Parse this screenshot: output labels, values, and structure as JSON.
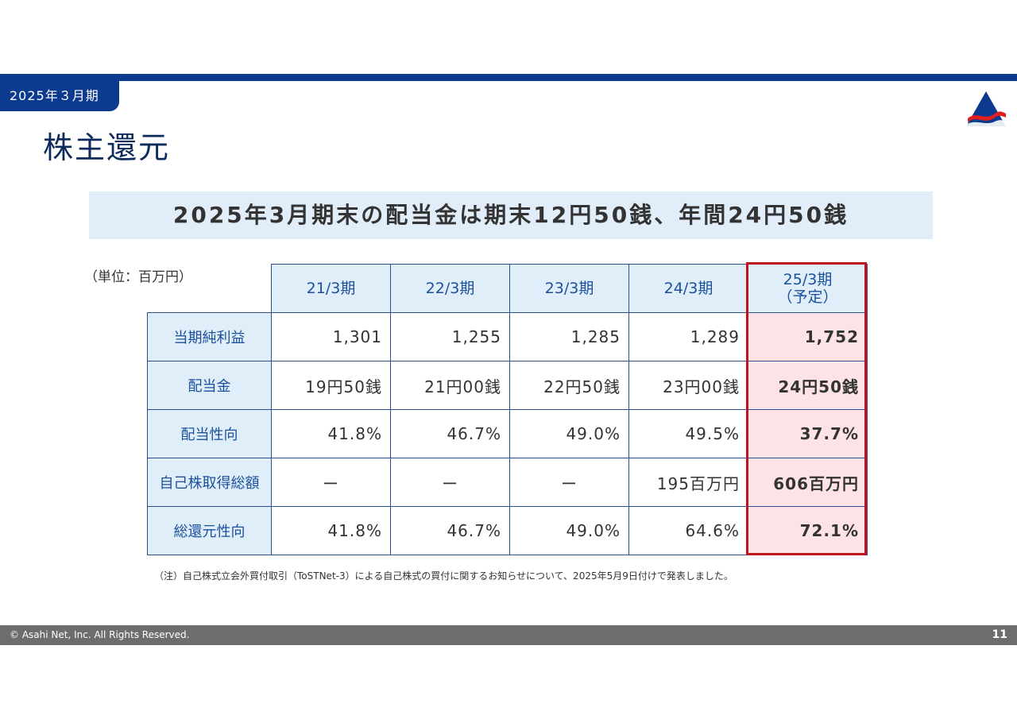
{
  "header": {
    "period_tab": "2025年３月期",
    "title": "株主還元"
  },
  "headline": "2025年3月期末の配当金は期末12円50銭、年間24円50銭",
  "unit_label": "（単位：百万円）",
  "table": {
    "columns": [
      "21/3期",
      "22/3期",
      "23/3期",
      "24/3期",
      "25/3期\n（予定）"
    ],
    "rows": [
      {
        "label": "当期純利益",
        "values": [
          "1,301",
          "1,255",
          "1,285",
          "1,289",
          "1,752"
        ]
      },
      {
        "label": "配当金",
        "values": [
          "19円50銭",
          "21円00銭",
          "22円50銭",
          "23円00銭",
          "24円50銭"
        ]
      },
      {
        "label": "配当性向",
        "values": [
          "41.8%",
          "46.7%",
          "49.0%",
          "49.5%",
          "37.7%"
        ]
      },
      {
        "label": "自己株取得総額",
        "values": [
          "ー",
          "ー",
          "ー",
          "195百万円",
          "606百万円"
        ]
      },
      {
        "label": "総還元性向",
        "values": [
          "41.8%",
          "46.7%",
          "49.0%",
          "64.6%",
          "72.1%"
        ]
      }
    ]
  },
  "note": "（注）自己株式立会外買付取引（ToSTNet-3）による自己株式の買付に関するお知らせについて、2025年5月9日付けで発表しました。",
  "footer": {
    "copyright": "© Asahi Net, Inc. All Rights Reserved.",
    "page_number": "11"
  },
  "colors": {
    "brand_blue": "#0b3a8f",
    "highlight_red": "#c0141c",
    "highlight_fill": "#fde3e5",
    "header_fill": "#dfeef9"
  },
  "icons": {
    "logo": "asahi-net-logo"
  }
}
